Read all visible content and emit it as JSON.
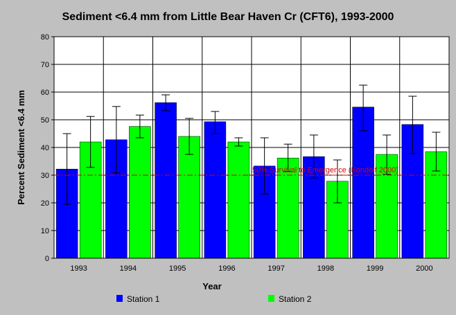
{
  "chart_data": {
    "type": "bar",
    "title": "Sediment <6.4 mm from Little Bear Haven Cr (CFT6), 1993-2000",
    "xlabel": "Year",
    "ylabel": "Percent Sediment <6.4 mm",
    "ylim": [
      0,
      80
    ],
    "yticks": [
      "0",
      "10",
      "20",
      "30",
      "40",
      "50",
      "60",
      "70",
      "80"
    ],
    "categories": [
      "1993",
      "1994",
      "1995",
      "1996",
      "1997",
      "1998",
      "1999",
      "2000"
    ],
    "grid": true,
    "legend_position": "bottom",
    "series": [
      {
        "name": "Station 1",
        "color": "#0000ff",
        "values": [
          32.2,
          42.8,
          56.2,
          49.3,
          33.3,
          36.7,
          54.6,
          48.3
        ],
        "error_low": [
          19.5,
          30.8,
          53.3,
          45.0,
          23.2,
          29.0,
          46.0,
          37.8
        ],
        "error_high": [
          45.0,
          54.8,
          59.0,
          53.0,
          43.5,
          44.5,
          62.5,
          58.5
        ]
      },
      {
        "name": "Station 2",
        "color": "#00ff00",
        "values": [
          42.0,
          47.6,
          44.0,
          42.0,
          36.2,
          27.8,
          37.5,
          38.5
        ],
        "error_low": [
          32.8,
          43.5,
          37.5,
          40.5,
          31.3,
          20.0,
          30.3,
          31.5
        ],
        "error_high": [
          51.2,
          51.7,
          50.5,
          43.5,
          41.2,
          35.5,
          44.5,
          45.5
        ]
      }
    ],
    "reference_line": {
      "value": 30,
      "label": "50% Survival to Emergence (Kondolf 2000)",
      "color": "#d80000",
      "style": "dash-dot"
    }
  }
}
